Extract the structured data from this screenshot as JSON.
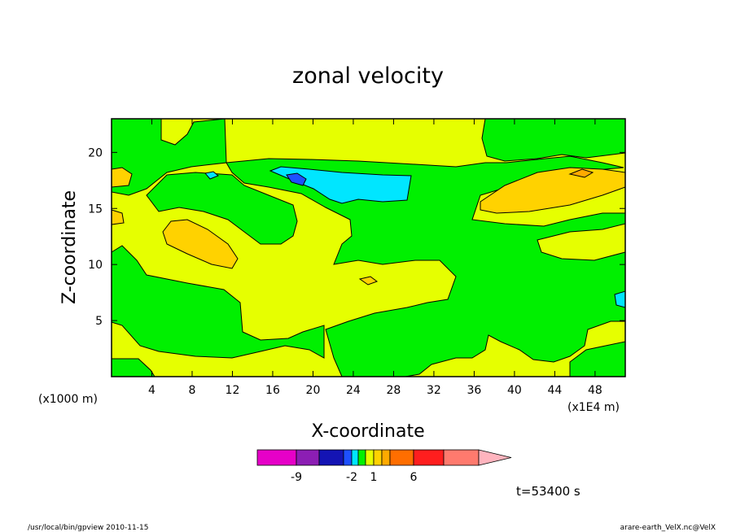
{
  "chart_data": {
    "type": "heatmap",
    "title": "zonal velocity",
    "xlabel": "X-coordinate",
    "ylabel": "Z-coordinate",
    "x_unit_left": "(x1000 m)",
    "x_unit_right": "(x1E4 m)",
    "xlim": [
      0,
      51
    ],
    "ylim": [
      0,
      23
    ],
    "x_ticks": [
      4,
      8,
      12,
      16,
      20,
      24,
      28,
      32,
      36,
      40,
      44,
      48
    ],
    "y_ticks": [
      5,
      10,
      15,
      20
    ],
    "colorbar": {
      "colors": [
        "#e600c8",
        "#8c1eb4",
        "#1414b4",
        "#1e50ff",
        "#00e6ff",
        "#00f000",
        "#e6ff00",
        "#ffd200",
        "#ffaa00",
        "#ff6e00",
        "#ff1e1e",
        "#ff7a6e",
        "#ffb4be"
      ],
      "labels": [
        "-9",
        "-2",
        "1",
        "6"
      ]
    },
    "time_label": "t=53400 s",
    "footer_left": "/usr/local/bin/gpview   2010-11-15",
    "footer_right": "arare-earth_VelX.nc@VelX"
  }
}
